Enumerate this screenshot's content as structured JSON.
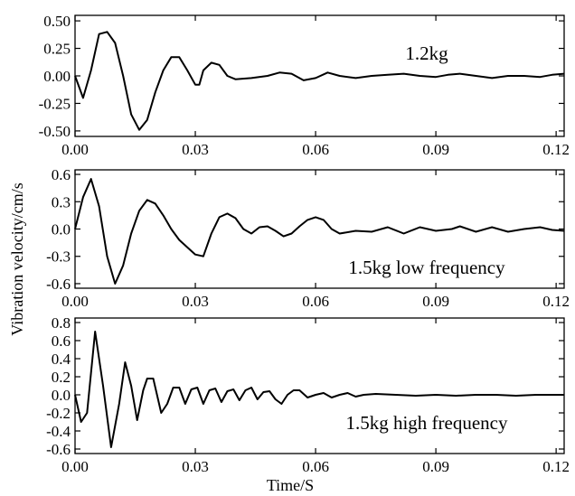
{
  "chart_data": {
    "type": "line",
    "xlabel": "Time/S",
    "ylabel": "Vibration velocity/cm/s",
    "xlim": [
      0,
      0.122
    ],
    "xticks": [
      "0.00",
      "0.03",
      "0.06",
      "0.09",
      "0.12"
    ],
    "grid": false,
    "panels": [
      {
        "label": "1.2kg",
        "ylim": [
          -0.55,
          0.55
        ],
        "yticks": [
          "0.50",
          "0.25",
          "0.00",
          "-0.25",
          "-0.50"
        ],
        "series": [
          {
            "x": [
              0,
              0.002,
              0.004,
              0.006,
              0.008,
              0.01,
              0.012,
              0.014,
              0.016,
              0.018,
              0.02,
              0.022,
              0.024,
              0.026,
              0.028,
              0.03,
              0.031,
              0.032,
              0.034,
              0.036,
              0.038,
              0.04,
              0.044,
              0.048,
              0.051,
              0.054,
              0.057,
              0.06,
              0.063,
              0.066,
              0.07,
              0.074,
              0.078,
              0.082,
              0.086,
              0.09,
              0.093,
              0.096,
              0.1,
              0.104,
              0.108,
              0.112,
              0.116,
              0.119,
              0.122
            ],
            "y": [
              0.0,
              -0.2,
              0.05,
              0.38,
              0.4,
              0.3,
              0.0,
              -0.35,
              -0.49,
              -0.4,
              -0.15,
              0.05,
              0.17,
              0.17,
              0.05,
              -0.08,
              -0.08,
              0.05,
              0.12,
              0.1,
              0.0,
              -0.03,
              -0.02,
              0.0,
              0.03,
              0.02,
              -0.04,
              -0.02,
              0.03,
              0.0,
              -0.02,
              0.0,
              0.01,
              0.02,
              0.0,
              -0.01,
              0.01,
              0.02,
              0.0,
              -0.02,
              0.0,
              0.0,
              -0.01,
              0.01,
              0.02
            ]
          }
        ]
      },
      {
        "label": "1.5kg low frequency",
        "ylim": [
          -0.65,
          0.65
        ],
        "yticks": [
          "0.6",
          "0.3",
          "0.0",
          "-0.3",
          "-0.6"
        ],
        "series": [
          {
            "x": [
              0,
              0.002,
              0.004,
              0.006,
              0.008,
              0.01,
              0.012,
              0.014,
              0.016,
              0.018,
              0.02,
              0.022,
              0.024,
              0.026,
              0.028,
              0.03,
              0.032,
              0.034,
              0.036,
              0.038,
              0.04,
              0.042,
              0.044,
              0.046,
              0.048,
              0.05,
              0.052,
              0.054,
              0.056,
              0.058,
              0.06,
              0.062,
              0.064,
              0.066,
              0.07,
              0.074,
              0.078,
              0.082,
              0.086,
              0.09,
              0.094,
              0.096,
              0.1,
              0.104,
              0.108,
              0.112,
              0.116,
              0.119,
              0.122
            ],
            "y": [
              0.0,
              0.35,
              0.55,
              0.25,
              -0.3,
              -0.6,
              -0.4,
              -0.05,
              0.2,
              0.32,
              0.28,
              0.15,
              0.0,
              -0.12,
              -0.2,
              -0.28,
              -0.3,
              -0.05,
              0.13,
              0.17,
              0.12,
              0.0,
              -0.05,
              0.02,
              0.03,
              -0.02,
              -0.08,
              -0.05,
              0.03,
              0.1,
              0.13,
              0.1,
              0.0,
              -0.05,
              -0.02,
              -0.03,
              0.02,
              -0.05,
              0.02,
              -0.02,
              0.0,
              0.03,
              -0.03,
              0.02,
              -0.03,
              0.0,
              0.02,
              -0.01,
              -0.02
            ]
          }
        ]
      },
      {
        "label": "1.5kg high frequency",
        "ylim": [
          -0.65,
          0.85
        ],
        "yticks": [
          "0.8",
          "0.6",
          "0.4",
          "0.2",
          "0.0",
          "-0.2",
          "-0.4",
          "-0.6"
        ],
        "series": [
          {
            "x": [
              0,
              0.0015,
              0.003,
              0.005,
              0.007,
              0.009,
              0.011,
              0.0125,
              0.014,
              0.0155,
              0.017,
              0.018,
              0.0195,
              0.0215,
              0.023,
              0.0245,
              0.026,
              0.0275,
              0.029,
              0.0305,
              0.032,
              0.0335,
              0.035,
              0.0365,
              0.038,
              0.0395,
              0.041,
              0.0425,
              0.044,
              0.0455,
              0.047,
              0.0485,
              0.05,
              0.0515,
              0.053,
              0.0545,
              0.056,
              0.058,
              0.06,
              0.062,
              0.064,
              0.066,
              0.068,
              0.07,
              0.072,
              0.075,
              0.08,
              0.085,
              0.09,
              0.095,
              0.1,
              0.105,
              0.11,
              0.115,
              0.12,
              0.122
            ],
            "y": [
              0.0,
              -0.3,
              -0.2,
              0.7,
              0.1,
              -0.58,
              -0.1,
              0.36,
              0.1,
              -0.28,
              0.05,
              0.18,
              0.18,
              -0.2,
              -0.1,
              0.08,
              0.08,
              -0.1,
              0.06,
              0.08,
              -0.1,
              0.05,
              0.07,
              -0.08,
              0.04,
              0.06,
              -0.06,
              0.05,
              0.08,
              -0.05,
              0.03,
              0.04,
              -0.05,
              -0.1,
              0.0,
              0.05,
              0.05,
              -0.03,
              0.0,
              0.02,
              -0.03,
              0.0,
              0.02,
              -0.02,
              0.0,
              0.01,
              0.0,
              -0.01,
              0.0,
              -0.01,
              0.0,
              0.0,
              -0.01,
              0.0,
              0.0,
              0.0
            ]
          }
        ]
      }
    ]
  }
}
